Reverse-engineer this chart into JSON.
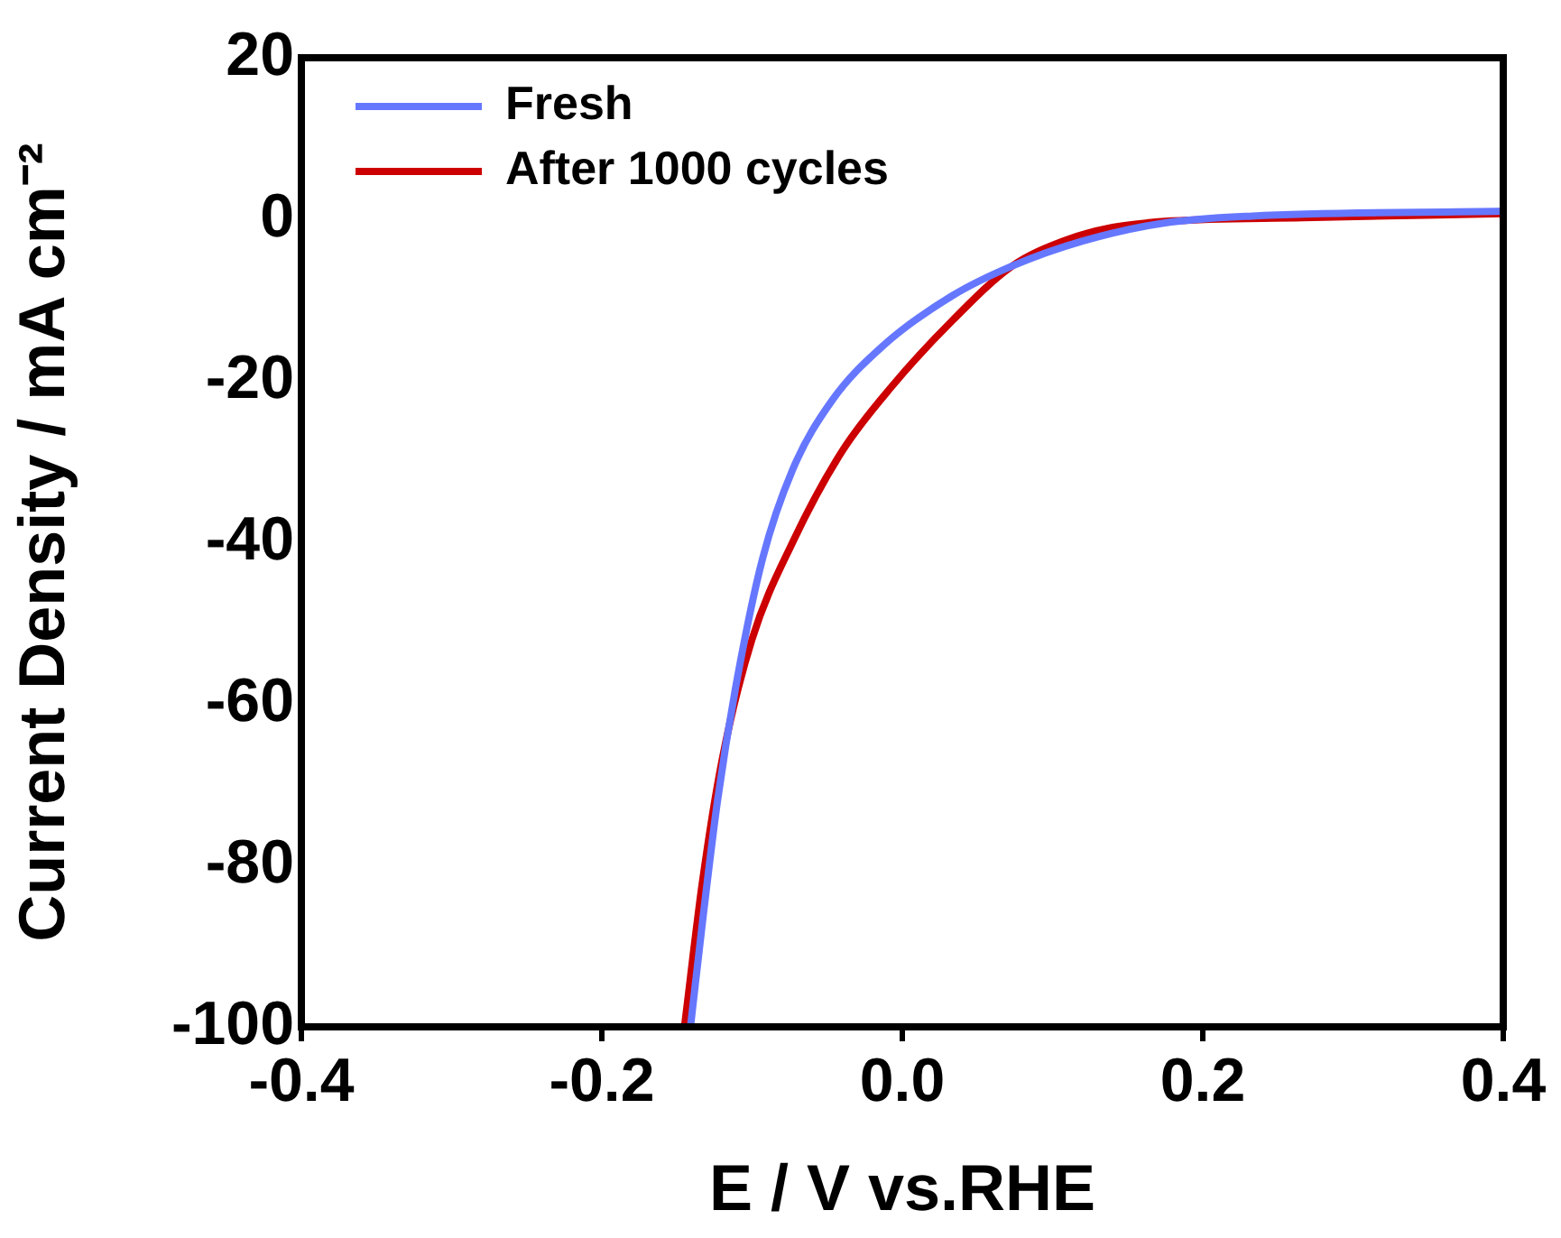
{
  "chart_data": {
    "type": "line",
    "xlabel": "E / V vs.RHE",
    "ylabel": "Current Density / mA cm⁻²",
    "xlim": [
      -0.4,
      0.4
    ],
    "xticks": [
      {
        "value": -0.4,
        "label": "-0.4"
      },
      {
        "value": -0.2,
        "label": "-0.2"
      },
      {
        "value": 0,
        "label": "0.0"
      },
      {
        "value": 0.2,
        "label": "0.2"
      },
      {
        "value": 0.4,
        "label": "0.4"
      }
    ],
    "ylim": [
      -100,
      20
    ],
    "yticks": [
      -100,
      -80,
      -60,
      -40,
      -20,
      0,
      20
    ],
    "grid": false,
    "legend": "top left",
    "marker": "none",
    "line_style": "solid",
    "series": [
      {
        "name": "Fresh",
        "color": "#6677ff",
        "x": [
          -0.141,
          -0.133,
          -0.123,
          -0.11,
          -0.093,
          -0.073,
          -0.047,
          -0.013,
          0.033,
          0.073,
          0.12,
          0.173,
          0.233,
          0.4
        ],
        "values": [
          -100,
          -87,
          -72,
          -57,
          -42,
          -31,
          -22.5,
          -15.7,
          -9.5,
          -5.8,
          -2.7,
          -0.5,
          0.4,
          1.0
        ]
      },
      {
        "name": "After 1000 cycles",
        "color": "#cc0000",
        "x": [
          -0.145,
          -0.133,
          -0.12,
          -0.1,
          -0.073,
          -0.04,
          -0.007,
          0.033,
          0.073,
          0.107,
          0.14,
          0.18,
          0.267,
          0.4
        ],
        "values": [
          -100,
          -82,
          -67,
          -52,
          -40,
          -28.7,
          -20.7,
          -12.6,
          -5.8,
          -2.7,
          -1,
          -0.2,
          0.2,
          0.7
        ]
      }
    ]
  }
}
